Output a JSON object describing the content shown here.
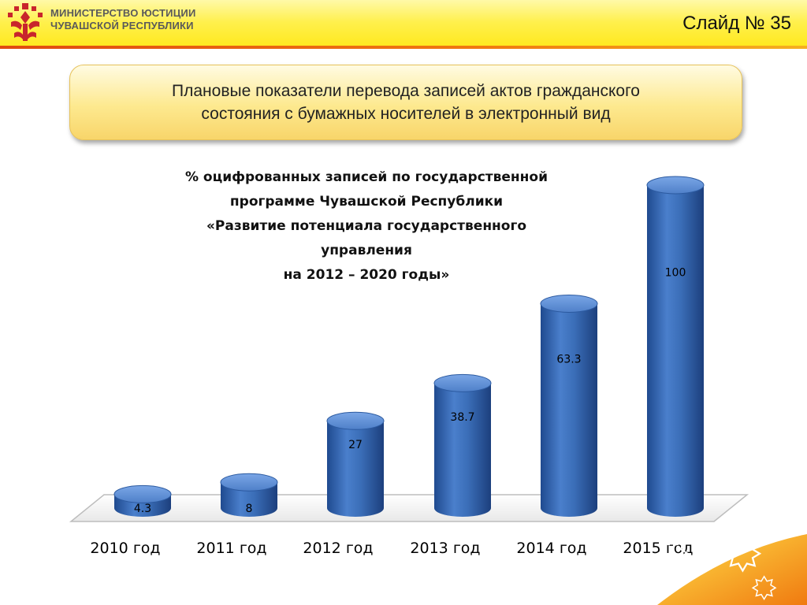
{
  "header": {
    "ministry_line1": "МИНИСТЕРСТВО ЮСТИЦИИ",
    "ministry_line2": "ЧУВАШСКОЙ РЕСПУБЛИКИ",
    "slide_number": "Слайд № 35"
  },
  "slide_title": {
    "line1": "Плановые показатели перевода  записей актов гражданского",
    "line2": "состояния с бумажных носителей в электронный вид"
  },
  "colors": {
    "bar": "#3a6db7",
    "bar_top": "#5f8fd6",
    "header_yellow": "#fff04d",
    "accent_orange": "#f07a10"
  },
  "chart_data": {
    "type": "bar",
    "title_lines": [
      "% оцифрованных записей по государственной",
      "программе Чувашской Республики",
      "«Развитие потенциала государственного",
      "управления",
      "на 2012 – 2020 годы»"
    ],
    "categories": [
      "2010 год",
      "2011 год",
      "2012 год",
      "2013 год",
      "2014 год",
      "2015 год"
    ],
    "values": [
      4.3,
      8,
      27,
      38.7,
      63.3,
      100
    ],
    "value_labels": [
      "4.3",
      "8",
      "27",
      "38.7",
      "63.3",
      "100"
    ],
    "ylim": [
      0,
      100
    ],
    "grid": false,
    "legend": "none"
  }
}
